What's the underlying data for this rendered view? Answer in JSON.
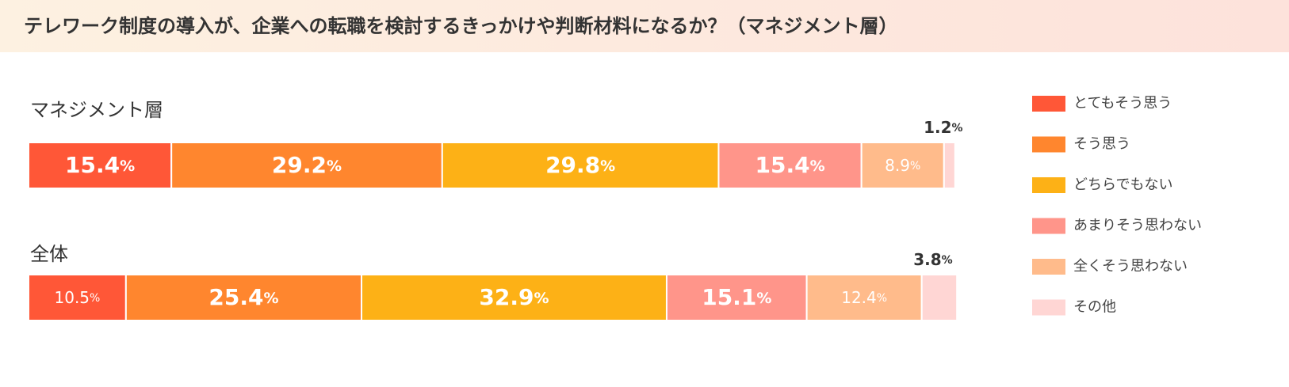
{
  "chart_data": {
    "type": "bar",
    "orientation": "horizontal",
    "stacked": true,
    "title": "テレワーク制度の導入が、企業への転職を検討するきっかけや判断材料になるか？（マネジメント層）",
    "categories": [
      "マネジメント層",
      "全体"
    ],
    "xlim": [
      0,
      100
    ],
    "legend": "right",
    "series": [
      {
        "name": "とてもそう思う",
        "color": "#ff5737",
        "values": [
          15.4,
          10.5
        ],
        "value_labels": [
          "15.4%",
          "10.5%"
        ]
      },
      {
        "name": "そう思う",
        "color": "#ff862e",
        "values": [
          29.2,
          25.4
        ],
        "value_labels": [
          "29.2%",
          "25.4%"
        ]
      },
      {
        "name": "どちらでもない",
        "color": "#fdb116",
        "values": [
          29.8,
          32.9
        ],
        "value_labels": [
          "29.8%",
          "32.9%"
        ]
      },
      {
        "name": "あまりそう思わない",
        "color": "#ff958a",
        "values": [
          15.4,
          15.1
        ],
        "value_labels": [
          "15.4%",
          "15.1%"
        ]
      },
      {
        "name": "全くそう思わない",
        "color": "#ffbb8b",
        "values": [
          8.9,
          12.4
        ],
        "value_labels": [
          "8.9%",
          "12.4%"
        ]
      },
      {
        "name": "その他",
        "color": "#ffd6d4",
        "values": [
          1.2,
          3.8
        ],
        "value_labels": [
          "1.2%",
          "3.8%"
        ]
      }
    ]
  }
}
